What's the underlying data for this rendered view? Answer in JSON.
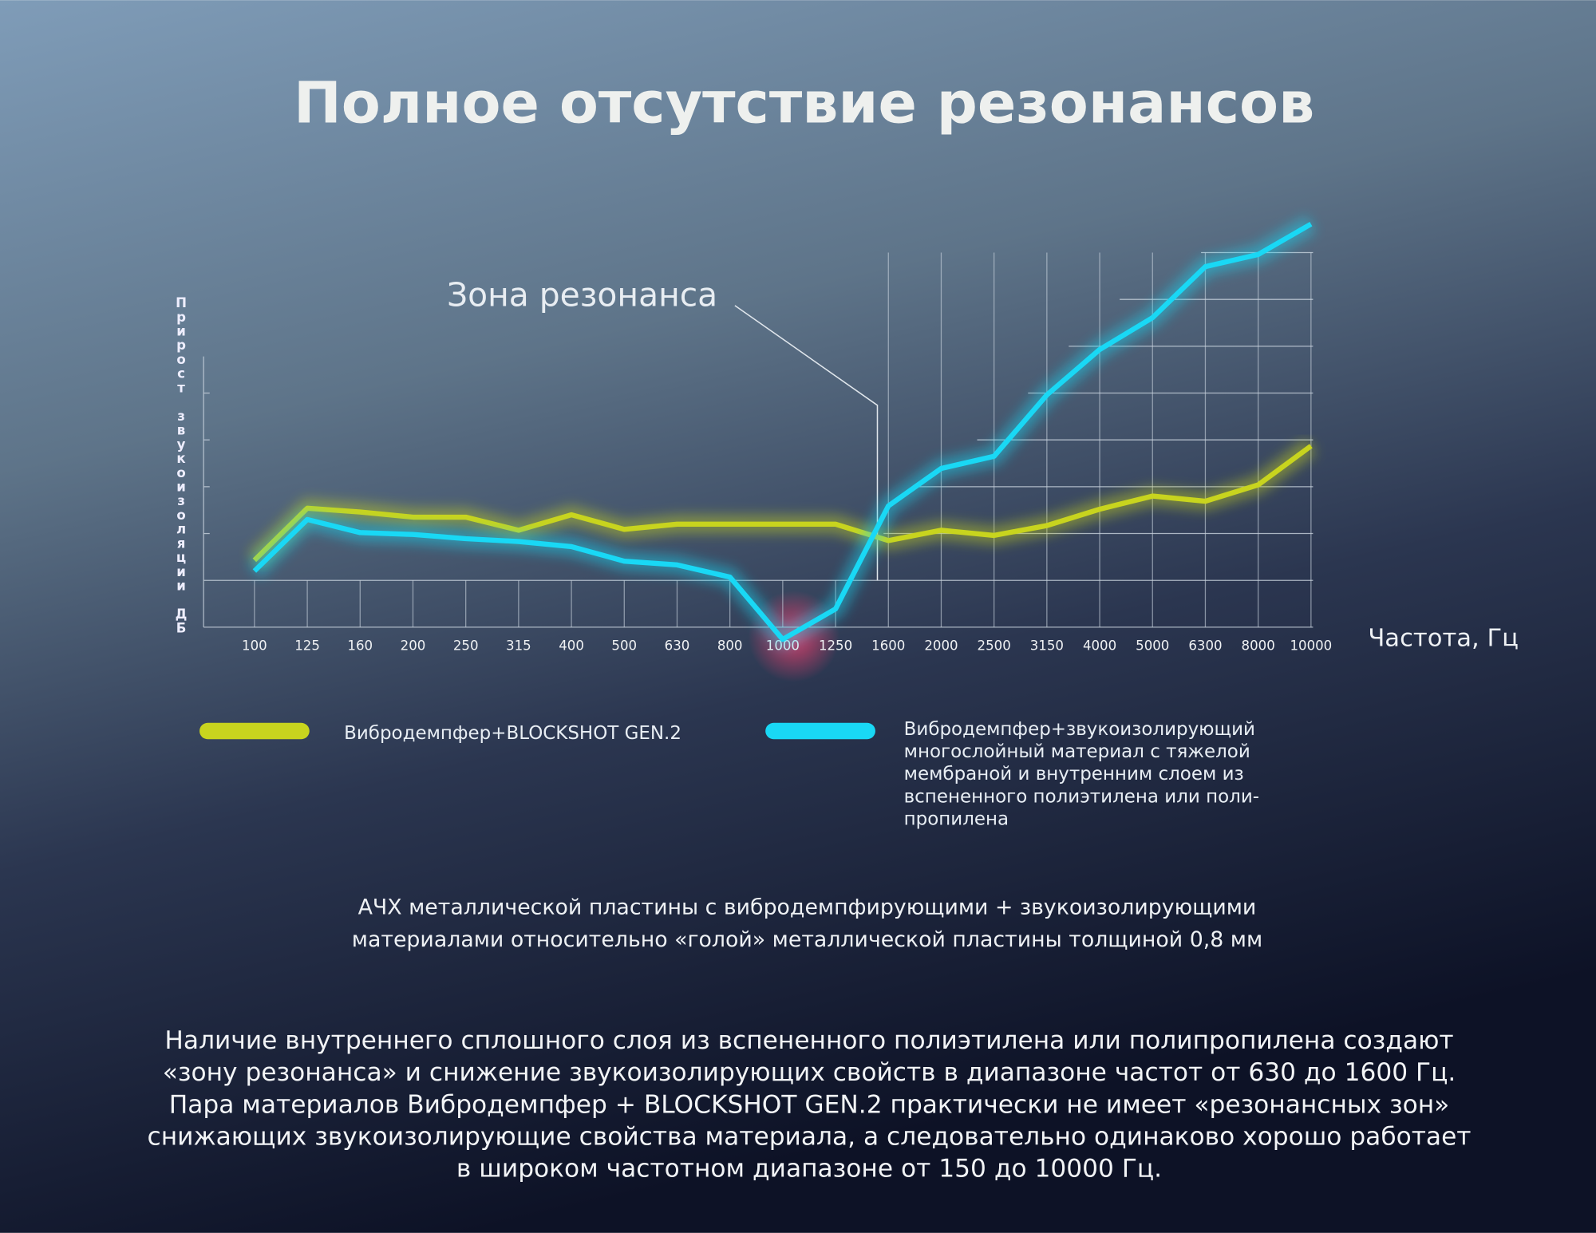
{
  "title": "Полное отсутствие резонансов",
  "chart_data": {
    "type": "line",
    "annotation": "Зона резонанса",
    "y_label": "Прирост звукоизоляции ДБ",
    "x_label": "Частота, Гц",
    "categories": [
      "100",
      "125",
      "160",
      "200",
      "250",
      "315",
      "400",
      "500",
      "630",
      "800",
      "1000",
      "1250",
      "1600",
      "2000",
      "2500",
      "3150",
      "4000",
      "5000",
      "6300",
      "8000",
      "10000"
    ],
    "series": [
      {
        "name": "Вибродемпфер+BLOCKSHOT GEN.2",
        "color": "#c8d41e",
        "values": [
          1.43,
          2.54,
          2.46,
          2.35,
          2.35,
          2.07,
          2.4,
          2.09,
          2.2,
          2.2,
          2.2,
          2.2,
          1.85,
          2.07,
          1.96,
          2.17,
          2.52,
          2.8,
          2.69,
          3.04,
          3.87
        ]
      },
      {
        "name": "Вибродемпфер+звукоизолирующий\nмногослойный материал с тяжелой\nмембраной и внутренним слоем из\nвспененного полиэтилена или поли-\nпропилена",
        "color": "#19d8f5",
        "values": [
          1.2,
          2.3,
          2.02,
          1.98,
          1.89,
          1.83,
          1.72,
          1.41,
          1.33,
          1.07,
          -0.26,
          0.39,
          2.59,
          3.39,
          3.65,
          4.96,
          5.93,
          6.61,
          7.7,
          7.96,
          8.61
        ]
      }
    ],
    "ylim": [
      -0.5,
      9
    ]
  },
  "caption": [
    "АЧХ металлической пластины с вибродемпфирующими + звукоизолирующими",
    "материалами относительно «голой» металлической пластины толщиной 0,8 мм"
  ],
  "paragraph": [
    "Наличие внутреннего сплошного слоя из вспененного полиэтилена или полипропилена создают",
    "«зону резонанса» и снижение звукоизолирующих свойств в диапазоне частот от 630 до 1600 Гц.",
    "Пара материалов Вибродемпфер + BLOCKSHOT GEN.2 практически не имеет «резонансных зон»",
    "снижающих звукоизолирующие свойства материала, а следовательно одинаково хорошо работает",
    "в широком частотном диапазоне от 150 до 10000 Гц."
  ]
}
